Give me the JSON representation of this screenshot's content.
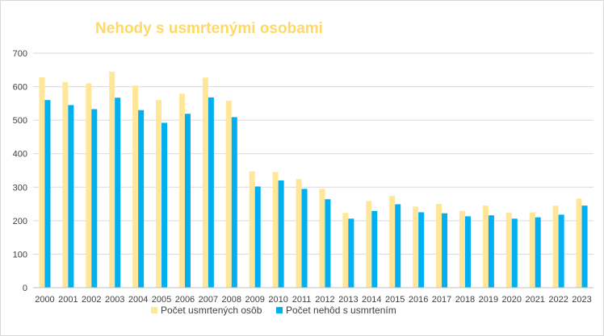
{
  "chart_data": {
    "type": "bar",
    "title": "Nehody s usmrtenými osobami",
    "categories": [
      "2000",
      "2001",
      "2002",
      "2003",
      "2004",
      "2005",
      "2006",
      "2007",
      "2008",
      "2009",
      "2010",
      "2011",
      "2012",
      "2013",
      "2014",
      "2015",
      "2016",
      "2017",
      "2018",
      "2019",
      "2020",
      "2021",
      "2022",
      "2023"
    ],
    "series": [
      {
        "name": "Počet usmrtených osôb",
        "color": "#ffe699",
        "values": [
          628,
          614,
          610,
          645,
          603,
          560,
          579,
          627,
          558,
          347,
          345,
          324,
          295,
          223,
          259,
          274,
          242,
          250,
          229,
          245,
          224,
          225,
          245,
          266
        ]
      },
      {
        "name": "Počet nehôd s usmrtením",
        "color": "#00b0f0",
        "values": [
          560,
          545,
          533,
          567,
          530,
          492,
          519,
          568,
          509,
          302,
          320,
          295,
          264,
          206,
          229,
          249,
          225,
          222,
          213,
          216,
          206,
          210,
          218,
          245
        ]
      }
    ],
    "ylim": [
      0,
      700
    ],
    "yticks": [
      "0",
      "100",
      "200",
      "300",
      "400",
      "500",
      "600",
      "700"
    ],
    "grid": true,
    "legend_position": "bottom"
  }
}
